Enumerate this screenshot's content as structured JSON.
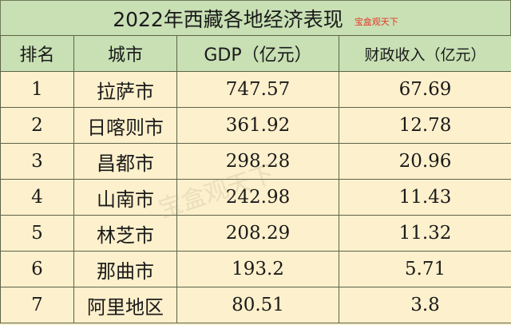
{
  "title": "2022年西藏各地经济表现",
  "brand": "宝盒观天下",
  "watermark": "宝盒观天下",
  "headers": [
    "排名",
    "城市",
    "GDP（亿元）",
    "财政收入（亿元）"
  ],
  "rows": [
    {
      "rank": "1",
      "city": "拉萨市",
      "gdp": "747.57",
      "revenue": "67.69"
    },
    {
      "rank": "2",
      "city": "日喀则市",
      "gdp": "361.92",
      "revenue": "12.78"
    },
    {
      "rank": "3",
      "city": "昌都市",
      "gdp": "298.28",
      "revenue": "20.96"
    },
    {
      "rank": "4",
      "city": "山南市",
      "gdp": "242.98",
      "revenue": "11.43"
    },
    {
      "rank": "5",
      "city": "林芝市",
      "gdp": "208.29",
      "revenue": "11.32"
    },
    {
      "rank": "6",
      "city": "那曲市",
      "gdp": "193.2",
      "revenue": "5.71"
    },
    {
      "rank": "7",
      "city": "阿里地区",
      "gdp": "80.51",
      "revenue": "3.8"
    }
  ],
  "colors": {
    "header_bg": "#c8e0b4",
    "body_bg": "#fdf0cc",
    "brand": "#e23a2a",
    "border": "#5c6448"
  }
}
